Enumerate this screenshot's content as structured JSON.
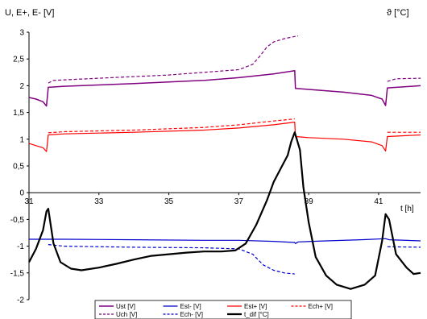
{
  "chart_data": {
    "type": "line",
    "ylabel": "U, E+, E- [V]",
    "y2label": "ϑ [°C]",
    "xlabel": "t [h]",
    "xlim": [
      31,
      42.2
    ],
    "ylim": [
      -2,
      3
    ],
    "x_ticks": [
      31,
      33,
      35,
      37,
      39,
      41
    ],
    "y_ticks": [
      "-2",
      "-1,5",
      "-1",
      "-0,5",
      "0",
      "0,5",
      "1",
      "1,5",
      "2",
      "2,5",
      "3"
    ],
    "grid": false,
    "legend_position": "bottom",
    "series": [
      {
        "name": "Ust [V]",
        "color": "#800080",
        "dash": "solid",
        "width": 1.5,
        "points": [
          [
            31.0,
            1.78
          ],
          [
            31.2,
            1.75
          ],
          [
            31.4,
            1.7
          ],
          [
            31.5,
            1.62
          ],
          [
            31.55,
            1.97
          ],
          [
            32,
            1.99
          ],
          [
            34,
            2.04
          ],
          [
            36,
            2.1
          ],
          [
            37,
            2.15
          ],
          [
            38,
            2.22
          ],
          [
            38.6,
            2.28
          ],
          [
            38.62,
            1.95
          ],
          [
            39.0,
            1.93
          ],
          [
            40.0,
            1.88
          ],
          [
            40.8,
            1.82
          ],
          [
            41.1,
            1.75
          ],
          [
            41.2,
            1.63
          ],
          [
            41.25,
            1.96
          ],
          [
            42.2,
            2.0
          ]
        ]
      },
      {
        "name": "Uch [V]",
        "color": "#800080",
        "dash": "dash",
        "width": 1.2,
        "points": [
          [
            31.55,
            2.05
          ],
          [
            31.7,
            2.1
          ],
          [
            33,
            2.14
          ],
          [
            35,
            2.2
          ],
          [
            37,
            2.3
          ],
          [
            37.4,
            2.4
          ],
          [
            37.6,
            2.55
          ],
          [
            37.8,
            2.72
          ],
          [
            38.0,
            2.82
          ],
          [
            38.3,
            2.88
          ],
          [
            38.6,
            2.92
          ],
          [
            38.7,
            2.93
          ]
        ]
      },
      {
        "name": "Uch [V]",
        "color": "#800080",
        "dash": "dash",
        "width": 1.2,
        "points": [
          [
            41.25,
            2.08
          ],
          [
            41.5,
            2.13
          ],
          [
            42.2,
            2.14
          ]
        ]
      },
      {
        "name": "Est- [V]",
        "color": "#0000CC",
        "dash": "solid",
        "width": 1.2,
        "points": [
          [
            31.0,
            -0.87
          ],
          [
            32,
            -0.87
          ],
          [
            34,
            -0.88
          ],
          [
            36,
            -0.89
          ],
          [
            37,
            -0.89
          ],
          [
            38.0,
            -0.91
          ],
          [
            38.6,
            -0.93
          ],
          [
            38.62,
            -0.95
          ],
          [
            38.7,
            -0.92
          ],
          [
            39.5,
            -0.9
          ],
          [
            40.5,
            -0.88
          ],
          [
            41.2,
            -0.86
          ],
          [
            41.3,
            -0.88
          ],
          [
            42.2,
            -0.9
          ]
        ]
      },
      {
        "name": "Ech- [V]",
        "color": "#0000CC",
        "dash": "dash",
        "width": 1.2,
        "points": [
          [
            31.55,
            -0.97
          ],
          [
            32,
            -1.0
          ],
          [
            34,
            -1.02
          ],
          [
            36,
            -1.03
          ],
          [
            37.0,
            -1.05
          ],
          [
            37.4,
            -1.15
          ],
          [
            37.7,
            -1.35
          ],
          [
            38.0,
            -1.45
          ],
          [
            38.3,
            -1.5
          ],
          [
            38.6,
            -1.52
          ]
        ]
      },
      {
        "name": "Ech- [V]",
        "color": "#0000CC",
        "dash": "dash",
        "width": 1.2,
        "points": [
          [
            41.25,
            -1.01
          ],
          [
            42.2,
            -1.02
          ]
        ]
      },
      {
        "name": "Est+ [V]",
        "color": "#FF0000",
        "dash": "solid",
        "width": 1.2,
        "points": [
          [
            31.0,
            0.92
          ],
          [
            31.2,
            0.88
          ],
          [
            31.4,
            0.84
          ],
          [
            31.5,
            0.77
          ],
          [
            31.55,
            1.08
          ],
          [
            32,
            1.1
          ],
          [
            34,
            1.13
          ],
          [
            36,
            1.17
          ],
          [
            37,
            1.21
          ],
          [
            38,
            1.27
          ],
          [
            38.6,
            1.32
          ],
          [
            38.62,
            1.05
          ],
          [
            39.0,
            1.03
          ],
          [
            40.0,
            1.0
          ],
          [
            40.8,
            0.95
          ],
          [
            41.1,
            0.88
          ],
          [
            41.2,
            0.78
          ],
          [
            41.25,
            1.05
          ],
          [
            42.2,
            1.08
          ]
        ]
      },
      {
        "name": "Ech+ [V]",
        "color": "#FF0000",
        "dash": "dash",
        "width": 1.2,
        "points": [
          [
            31.55,
            1.12
          ],
          [
            32,
            1.14
          ],
          [
            34,
            1.17
          ],
          [
            36,
            1.22
          ],
          [
            37,
            1.27
          ],
          [
            38,
            1.34
          ],
          [
            38.6,
            1.38
          ]
        ]
      },
      {
        "name": "Ech+ [V]",
        "color": "#FF0000",
        "dash": "dash",
        "width": 1.2,
        "points": [
          [
            41.25,
            1.13
          ],
          [
            42.2,
            1.13
          ]
        ]
      },
      {
        "name": "t_dif [°C]",
        "color": "#000000",
        "dash": "solid",
        "width": 2.2,
        "points": [
          [
            31.0,
            -1.3
          ],
          [
            31.2,
            -1.05
          ],
          [
            31.4,
            -0.7
          ],
          [
            31.5,
            -0.35
          ],
          [
            31.55,
            -0.3
          ],
          [
            31.7,
            -0.95
          ],
          [
            31.9,
            -1.3
          ],
          [
            32.2,
            -1.42
          ],
          [
            32.5,
            -1.45
          ],
          [
            33.0,
            -1.4
          ],
          [
            33.5,
            -1.33
          ],
          [
            34.0,
            -1.25
          ],
          [
            34.5,
            -1.18
          ],
          [
            35.0,
            -1.15
          ],
          [
            35.5,
            -1.12
          ],
          [
            36.0,
            -1.1
          ],
          [
            36.5,
            -1.1
          ],
          [
            36.9,
            -1.08
          ],
          [
            37.2,
            -0.95
          ],
          [
            37.5,
            -0.6
          ],
          [
            37.8,
            -0.15
          ],
          [
            38.0,
            0.2
          ],
          [
            38.2,
            0.45
          ],
          [
            38.4,
            0.7
          ],
          [
            38.5,
            0.95
          ],
          [
            38.6,
            1.13
          ],
          [
            38.75,
            0.8
          ],
          [
            38.85,
            0.1
          ],
          [
            39.0,
            -0.55
          ],
          [
            39.2,
            -1.2
          ],
          [
            39.5,
            -1.55
          ],
          [
            39.8,
            -1.72
          ],
          [
            40.2,
            -1.8
          ],
          [
            40.6,
            -1.72
          ],
          [
            40.9,
            -1.55
          ],
          [
            41.1,
            -0.9
          ],
          [
            41.2,
            -0.4
          ],
          [
            41.3,
            -0.5
          ],
          [
            41.5,
            -1.15
          ],
          [
            41.8,
            -1.4
          ],
          [
            42.0,
            -1.52
          ],
          [
            42.2,
            -1.5
          ]
        ]
      }
    ],
    "legend": [
      {
        "label": "Ust [V]",
        "color": "#800080",
        "dash": "solid",
        "width": 1.5
      },
      {
        "label": "Est- [V]",
        "color": "#0000CC",
        "dash": "solid",
        "width": 1.2
      },
      {
        "label": "Est+ [V]",
        "color": "#FF0000",
        "dash": "solid",
        "width": 1.2
      },
      {
        "label": "Ech+ [V]",
        "color": "#FF0000",
        "dash": "dash",
        "width": 1.2
      },
      {
        "label": "Uch [V]",
        "color": "#800080",
        "dash": "dash",
        "width": 1.2
      },
      {
        "label": "Ech- [V]",
        "color": "#0000CC",
        "dash": "dash",
        "width": 1.2
      },
      {
        "label": "t_dif [°C]",
        "color": "#000000",
        "dash": "solid",
        "width": 2.2
      }
    ]
  }
}
